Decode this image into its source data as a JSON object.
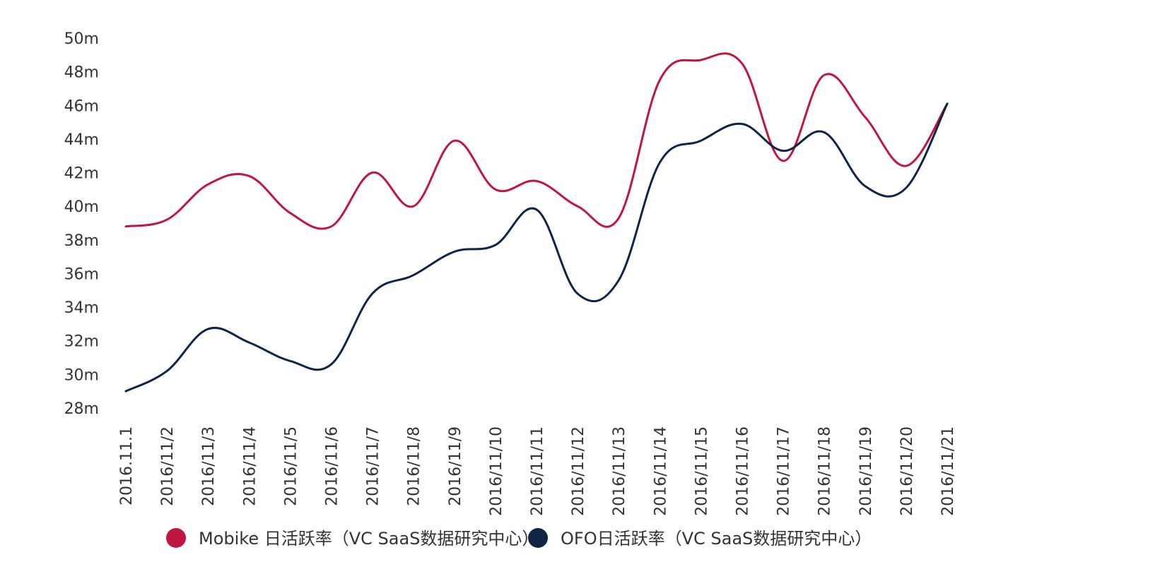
{
  "chart_data": {
    "type": "line",
    "categories": [
      "2016.11.1",
      "2016/11/2",
      "2016/11/3",
      "2016/11/4",
      "2016/11/5",
      "2016/11/6",
      "2016/11/7",
      "2016/11/8",
      "2016/11/9",
      "2016/11/10",
      "2016/11/11",
      "2016/11/12",
      "2016/11/13",
      "2016/11/14",
      "2016/11/15",
      "2016/11/16",
      "2016/11/17",
      "2016/11/18",
      "2016/11/19",
      "2016/11/20",
      "2016/11/21"
    ],
    "series": [
      {
        "name": "Mobike 日活跃率（VC SaaS数据研究中心）",
        "color": "#c0163f",
        "values": [
          38.8,
          39.2,
          41.3,
          41.8,
          39.6,
          38.8,
          42.0,
          40.0,
          43.9,
          41.0,
          41.5,
          40.0,
          39.3,
          47.5,
          48.7,
          48.5,
          42.7,
          47.8,
          45.3,
          42.4,
          46.1
        ]
      },
      {
        "name": "OFO日活跃率（VC SaaS数据研究中心）",
        "color": "#0e2548",
        "values": [
          29.0,
          30.2,
          32.7,
          31.9,
          30.8,
          30.6,
          34.8,
          35.9,
          37.3,
          37.7,
          39.8,
          34.8,
          35.6,
          42.6,
          43.9,
          44.9,
          43.3,
          44.4,
          41.2,
          41.1,
          46.1
        ]
      }
    ],
    "yticks": [
      "28m",
      "30m",
      "32m",
      "34m",
      "36m",
      "38m",
      "40m",
      "42m",
      "44m",
      "46m",
      "48m",
      "50m"
    ],
    "ylim": [
      28,
      50
    ],
    "title": "",
    "xlabel": "",
    "ylabel": "",
    "grid": false,
    "legend_position": "bottom"
  }
}
